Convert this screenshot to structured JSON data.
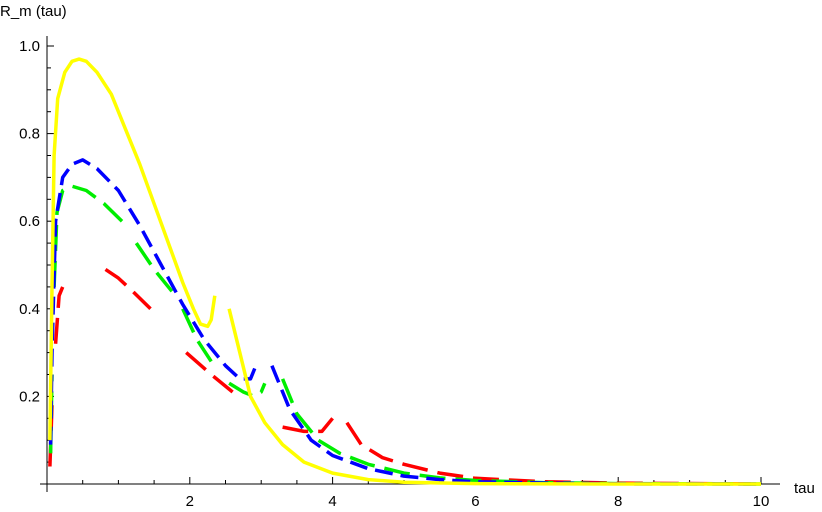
{
  "chart_data": {
    "type": "line",
    "xlabel": "tau",
    "ylabel": "R_m (tau)",
    "xlim": [
      0,
      10
    ],
    "ylim": [
      0,
      1.0
    ],
    "x_ticks": [
      {
        "v": 2,
        "label": "2"
      },
      {
        "v": 4,
        "label": "4"
      },
      {
        "v": 6,
        "label": "6"
      },
      {
        "v": 8,
        "label": "8"
      },
      {
        "v": 10,
        "label": "10"
      }
    ],
    "y_ticks": [
      {
        "v": 0.2,
        "label": "0.2"
      },
      {
        "v": 0.4,
        "label": "0.4"
      },
      {
        "v": 0.6,
        "label": "0.6"
      },
      {
        "v": 0.8,
        "label": "0.8"
      },
      {
        "v": 1.0,
        "label": "1.0"
      }
    ],
    "grid": false,
    "series": [
      {
        "color": "#ff0000",
        "dash": "long",
        "segments": [
          [
            [
              0.04,
              0.04
            ],
            [
              0.07,
              0.18
            ]
          ],
          [
            [
              0.12,
              0.32
            ],
            [
              0.17,
              0.43
            ],
            [
              0.22,
              0.45
            ]
          ],
          [
            [
              0.82,
              0.49
            ],
            [
              1.0,
              0.47
            ],
            [
              1.2,
              0.44
            ],
            [
              1.45,
              0.4
            ]
          ],
          [
            [
              1.95,
              0.3
            ],
            [
              2.3,
              0.25
            ],
            [
              2.6,
              0.21
            ]
          ],
          [
            [
              3.3,
              0.13
            ],
            [
              3.6,
              0.12
            ],
            [
              3.85,
              0.12
            ],
            [
              4.0,
              0.15
            ]
          ],
          [
            [
              4.2,
              0.14
            ],
            [
              4.4,
              0.09
            ],
            [
              4.7,
              0.06
            ],
            [
              5.0,
              0.045
            ],
            [
              5.5,
              0.025
            ],
            [
              6.0,
              0.013
            ],
            [
              7.0,
              0.005
            ],
            [
              8.0,
              0.002
            ],
            [
              10.0,
              0.0
            ]
          ]
        ]
      },
      {
        "color": "#00ee00",
        "dash": "long",
        "segments": [
          [
            [
              0.05,
              0.07
            ],
            [
              0.07,
              0.25
            ]
          ],
          [
            [
              0.1,
              0.45
            ],
            [
              0.14,
              0.62
            ],
            [
              0.22,
              0.67
            ],
            [
              0.35,
              0.68
            ],
            [
              0.55,
              0.67
            ],
            [
              0.8,
              0.64
            ],
            [
              1.05,
              0.6
            ]
          ],
          [
            [
              1.25,
              0.55
            ],
            [
              1.5,
              0.49
            ],
            [
              1.75,
              0.44
            ]
          ],
          [
            [
              1.9,
              0.4
            ],
            [
              2.1,
              0.33
            ],
            [
              2.3,
              0.28
            ]
          ],
          [
            [
              2.55,
              0.23
            ],
            [
              2.75,
              0.21
            ],
            [
              2.9,
              0.2
            ],
            [
              3.0,
              0.21
            ],
            [
              3.05,
              0.23
            ]
          ],
          [
            [
              3.3,
              0.24
            ],
            [
              3.5,
              0.16
            ],
            [
              3.8,
              0.1
            ],
            [
              4.1,
              0.07
            ],
            [
              4.5,
              0.045
            ],
            [
              5.0,
              0.025
            ],
            [
              5.5,
              0.014
            ],
            [
              6.0,
              0.008
            ],
            [
              7.0,
              0.003
            ],
            [
              8.0,
              0.001
            ],
            [
              10.0,
              0.0
            ]
          ]
        ]
      },
      {
        "color": "#0000ff",
        "dash": "medium",
        "segments": [
          [
            [
              0.05,
              0.09
            ],
            [
              0.07,
              0.3
            ],
            [
              0.12,
              0.6
            ],
            [
              0.22,
              0.7
            ],
            [
              0.35,
              0.73
            ],
            [
              0.5,
              0.74
            ],
            [
              0.7,
              0.72
            ],
            [
              1.0,
              0.67
            ],
            [
              1.3,
              0.59
            ],
            [
              1.6,
              0.5
            ],
            [
              1.9,
              0.41
            ],
            [
              2.2,
              0.33
            ],
            [
              2.5,
              0.27
            ],
            [
              2.7,
              0.24
            ],
            [
              2.85,
              0.24
            ],
            [
              2.95,
              0.28
            ]
          ],
          [
            [
              3.15,
              0.27
            ],
            [
              3.4,
              0.17
            ],
            [
              3.7,
              0.1
            ],
            [
              4.0,
              0.065
            ],
            [
              4.5,
              0.035
            ],
            [
              5.0,
              0.018
            ],
            [
              5.5,
              0.01
            ],
            [
              6.0,
              0.005
            ],
            [
              7.0,
              0.002
            ],
            [
              8.0,
              0.0005
            ],
            [
              10.0,
              0.0
            ]
          ]
        ]
      },
      {
        "color": "#ffff00",
        "dash": "solid",
        "segments": [
          [
            [
              0.04,
              0.1
            ],
            [
              0.07,
              0.45
            ],
            [
              0.1,
              0.75
            ],
            [
              0.15,
              0.88
            ],
            [
              0.25,
              0.94
            ],
            [
              0.35,
              0.965
            ],
            [
              0.45,
              0.97
            ],
            [
              0.55,
              0.965
            ],
            [
              0.7,
              0.94
            ],
            [
              0.9,
              0.89
            ],
            [
              1.1,
              0.81
            ],
            [
              1.3,
              0.73
            ],
            [
              1.5,
              0.64
            ],
            [
              1.7,
              0.55
            ],
            [
              1.9,
              0.46
            ],
            [
              2.05,
              0.4
            ],
            [
              2.15,
              0.365
            ],
            [
              2.25,
              0.36
            ],
            [
              2.3,
              0.375
            ],
            [
              2.35,
              0.43
            ]
          ],
          [
            [
              2.55,
              0.4
            ],
            [
              2.7,
              0.3
            ],
            [
              2.85,
              0.2
            ],
            [
              3.05,
              0.14
            ],
            [
              3.3,
              0.09
            ],
            [
              3.6,
              0.05
            ],
            [
              4.0,
              0.025
            ],
            [
              4.5,
              0.01
            ],
            [
              5.0,
              0.004
            ],
            [
              6.0,
              0.001
            ],
            [
              8.0,
              0.0
            ],
            [
              10.0,
              0.0
            ]
          ]
        ]
      }
    ]
  }
}
